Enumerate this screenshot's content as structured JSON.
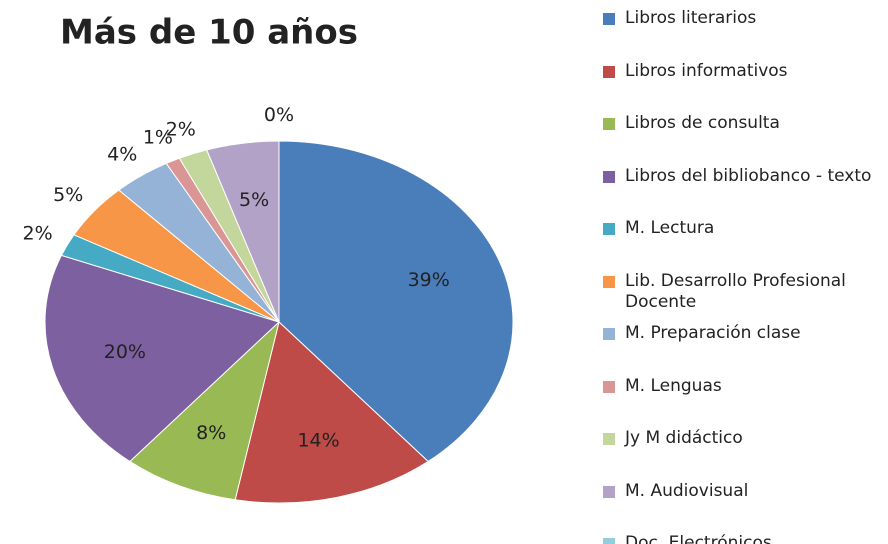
{
  "chart_data": {
    "type": "pie",
    "title": "Más de 10 años",
    "categories": [
      "Libros literarios",
      "Libros informativos",
      "Libros de consulta",
      "Libros del bibliobanco - texto",
      "M.  Lectura",
      "Lib. Desarrollo Profesional Docente",
      "M. Preparación clase",
      "M. Lenguas",
      "Jy M didáctico",
      "M. Audiovisual",
      "Doc. Electrónicos"
    ],
    "values": [
      39,
      14,
      8,
      20,
      2,
      5,
      4,
      1,
      2,
      5,
      0
    ],
    "value_labels": [
      "39%",
      "14%",
      "8%",
      "20%",
      "2%",
      "5%",
      "4%",
      "1%",
      "2%",
      "5%",
      "0%"
    ],
    "colors": [
      "#4a7ebb",
      "#be4b48",
      "#98b954",
      "#7d60a0",
      "#46aac5",
      "#f79646",
      "#94b3d6",
      "#d99694",
      "#c3d69b",
      "#b3a2c7",
      "#93cddd"
    ],
    "legend": "right"
  }
}
